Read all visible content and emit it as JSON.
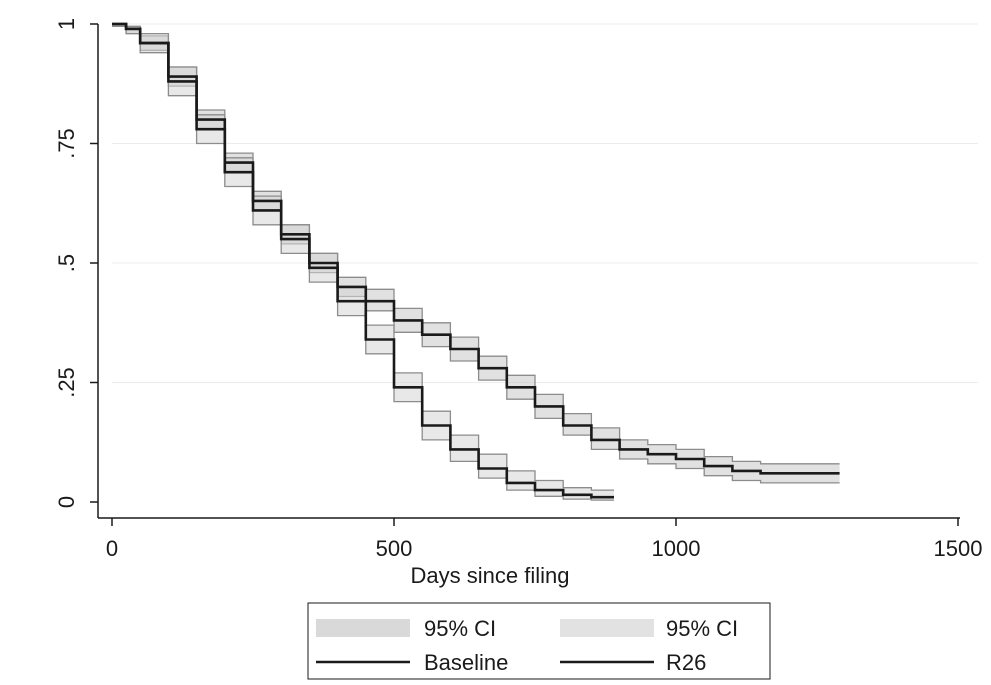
{
  "chart_data": {
    "type": "line",
    "title": "",
    "xlabel": "Days since filing",
    "ylabel": "",
    "xlim": [
      0,
      1500
    ],
    "ylim": [
      0,
      1
    ],
    "x_ticks": [
      {
        "value": 0,
        "label": "0"
      },
      {
        "value": 500,
        "label": "500"
      },
      {
        "value": 1000,
        "label": "1000"
      },
      {
        "value": 1500,
        "label": "1500"
      }
    ],
    "y_ticks": [
      {
        "value": 0,
        "label": "0"
      },
      {
        "value": 0.25,
        "label": ".25"
      },
      {
        "value": 0.5,
        "label": ".5"
      },
      {
        "value": 0.75,
        "label": ".75"
      },
      {
        "value": 1,
        "label": "1"
      }
    ],
    "grid": "horizontal",
    "legend_position": "bottom",
    "series": [
      {
        "name": "Baseline",
        "role": "estimate",
        "color": "#1a1a1a",
        "x": [
          0,
          25,
          50,
          100,
          150,
          200,
          250,
          300,
          350,
          400,
          450,
          500,
          550,
          600,
          650,
          700,
          750,
          800,
          850,
          900,
          950,
          1000,
          1050,
          1100,
          1150,
          1200,
          1250,
          1290
        ],
        "y": [
          1.0,
          0.99,
          0.96,
          0.89,
          0.8,
          0.71,
          0.63,
          0.56,
          0.5,
          0.45,
          0.42,
          0.38,
          0.35,
          0.32,
          0.28,
          0.24,
          0.2,
          0.16,
          0.13,
          0.11,
          0.1,
          0.09,
          0.075,
          0.065,
          0.06,
          0.06,
          0.06,
          0.06
        ]
      },
      {
        "name": "R26",
        "role": "estimate",
        "color": "#1a1a1a",
        "x": [
          0,
          25,
          50,
          100,
          150,
          200,
          250,
          300,
          350,
          400,
          450,
          500,
          550,
          600,
          650,
          700,
          750,
          800,
          850,
          890
        ],
        "y": [
          1.0,
          0.99,
          0.96,
          0.88,
          0.78,
          0.69,
          0.61,
          0.55,
          0.49,
          0.42,
          0.34,
          0.24,
          0.16,
          0.11,
          0.07,
          0.04,
          0.025,
          0.015,
          0.01,
          0.01
        ]
      }
    ],
    "bands": [
      {
        "name": "95% CI",
        "for_series": "Baseline",
        "color": "#c9c9c9",
        "x": [
          0,
          25,
          50,
          100,
          150,
          200,
          250,
          300,
          350,
          400,
          450,
          500,
          550,
          600,
          650,
          700,
          750,
          800,
          850,
          900,
          950,
          1000,
          1050,
          1100,
          1150,
          1200,
          1250,
          1290
        ],
        "lower": [
          0.995,
          0.98,
          0.945,
          0.87,
          0.78,
          0.69,
          0.61,
          0.54,
          0.48,
          0.43,
          0.4,
          0.355,
          0.325,
          0.295,
          0.255,
          0.215,
          0.175,
          0.14,
          0.11,
          0.09,
          0.08,
          0.07,
          0.055,
          0.045,
          0.04,
          0.04,
          0.04,
          0.04
        ],
        "upper": [
          1.0,
          0.995,
          0.975,
          0.91,
          0.82,
          0.73,
          0.65,
          0.58,
          0.52,
          0.47,
          0.445,
          0.405,
          0.375,
          0.345,
          0.305,
          0.265,
          0.225,
          0.185,
          0.155,
          0.13,
          0.12,
          0.11,
          0.095,
          0.085,
          0.08,
          0.08,
          0.08,
          0.08
        ]
      },
      {
        "name": "95% CI",
        "for_series": "R26",
        "color": "#d6d6d6",
        "x": [
          0,
          25,
          50,
          100,
          150,
          200,
          250,
          300,
          350,
          400,
          450,
          500,
          550,
          600,
          650,
          700,
          750,
          800,
          850,
          890
        ],
        "lower": [
          0.995,
          0.98,
          0.94,
          0.85,
          0.75,
          0.66,
          0.58,
          0.52,
          0.46,
          0.39,
          0.31,
          0.21,
          0.13,
          0.085,
          0.05,
          0.025,
          0.012,
          0.006,
          0.004,
          0.004
        ],
        "upper": [
          1.0,
          0.995,
          0.98,
          0.91,
          0.81,
          0.72,
          0.64,
          0.58,
          0.52,
          0.45,
          0.37,
          0.27,
          0.19,
          0.14,
          0.1,
          0.065,
          0.045,
          0.03,
          0.025,
          0.025
        ]
      }
    ],
    "legend": [
      {
        "label": "95% CI",
        "symbol": "band",
        "for_series": "Baseline"
      },
      {
        "label": "95% CI",
        "symbol": "band",
        "for_series": "R26"
      },
      {
        "label": "Baseline",
        "symbol": "line",
        "for_series": "Baseline"
      },
      {
        "label": "R26",
        "symbol": "line",
        "for_series": "R26"
      }
    ]
  }
}
